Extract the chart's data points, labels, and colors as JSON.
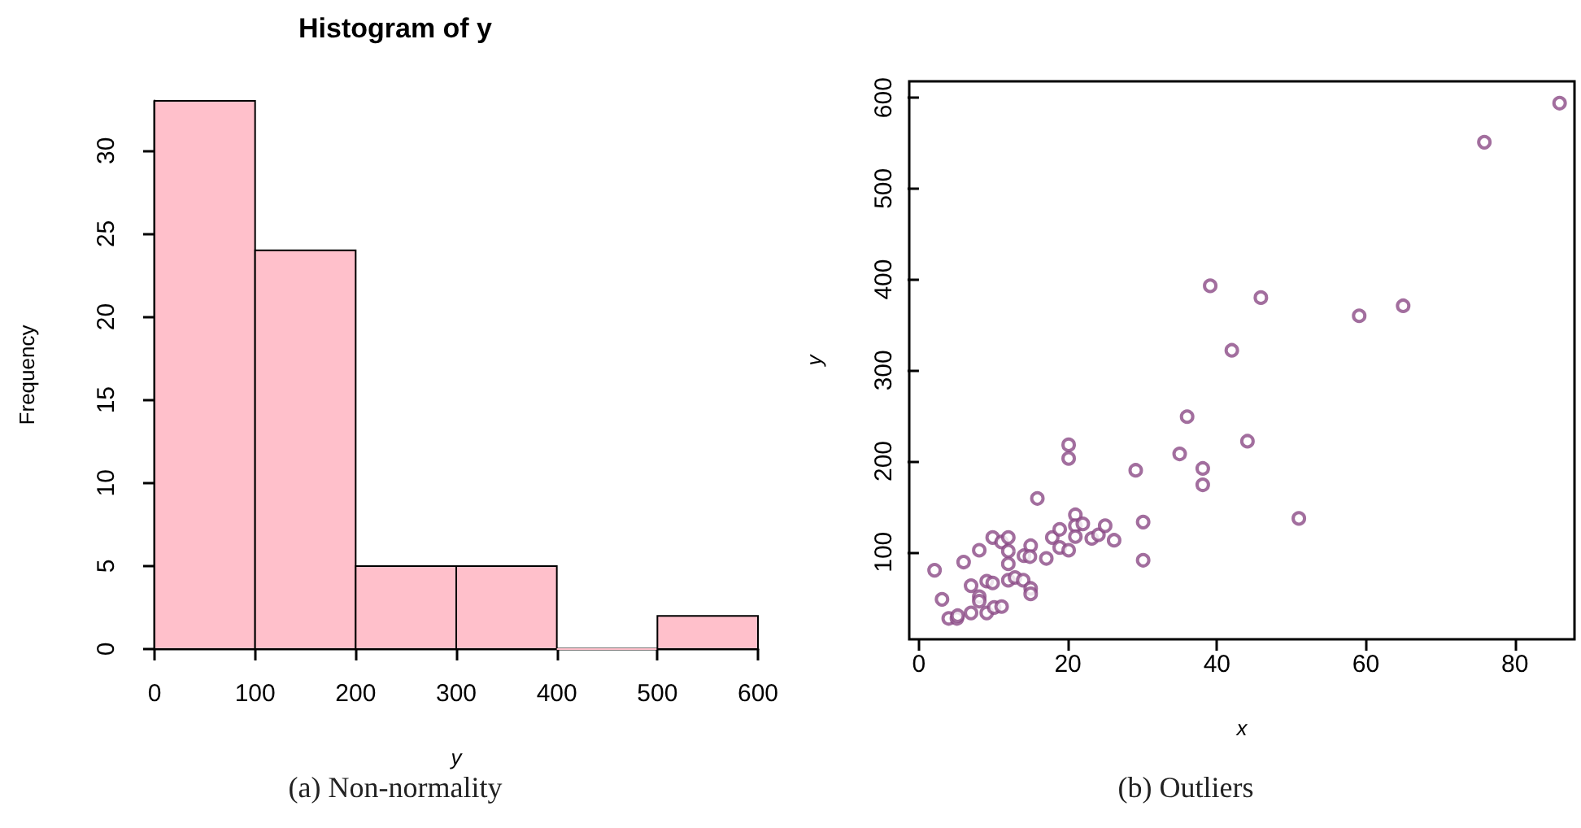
{
  "chart_data": [
    {
      "type": "histogram",
      "title": "Histogram of y",
      "xlabel": "y",
      "ylabel": "Frequency",
      "bins": [
        0,
        100,
        200,
        300,
        400,
        500,
        600
      ],
      "values": [
        33,
        24,
        5,
        5,
        0,
        2
      ],
      "color": "#ffc0cb",
      "xlim": [
        0,
        600
      ],
      "xticks": [
        0,
        100,
        200,
        300,
        400,
        500,
        600
      ],
      "ylim": [
        0,
        33
      ],
      "yticks": [
        0,
        5,
        10,
        15,
        20,
        25,
        30
      ],
      "grid": false,
      "annotations": [
        "(a) Non-normality"
      ]
    },
    {
      "type": "scatter",
      "xlabel": "x",
      "ylabel": "y",
      "color": "#8b4a86",
      "marker": "circle",
      "grid": false,
      "xlim": [
        -1.3,
        88
      ],
      "xticks": [
        0,
        20,
        40,
        60,
        80
      ],
      "ylim": [
        4,
        618
      ],
      "yticks": [
        100,
        200,
        300,
        400,
        500,
        600
      ],
      "annotations": [
        "(b) Outliers"
      ],
      "x": [
        2.1,
        3.1,
        4,
        5.1,
        5.2,
        6,
        7,
        7,
        8.1,
        8.1,
        8.1,
        9.1,
        9.1,
        9.9,
        9.9,
        10.1,
        11.1,
        11.1,
        12,
        12,
        12,
        12,
        12.9,
        14,
        14.1,
        15,
        14.9,
        15,
        15,
        17.1,
        15.9,
        17.9,
        18.9,
        18.9,
        20.1,
        20.1,
        20.1,
        21,
        21,
        21,
        22,
        23.2,
        24.1,
        25,
        26.2,
        29.1,
        30.1,
        30.1,
        35,
        36,
        38.1,
        38.1,
        39.1,
        42,
        44.1,
        45.9,
        51,
        59.1,
        65,
        75.9,
        86
      ],
      "values": [
        80,
        48,
        27,
        27,
        30,
        89,
        33,
        63,
        102,
        51,
        46,
        33,
        68,
        66,
        116,
        39,
        40,
        111,
        116,
        101,
        87,
        69,
        72,
        69,
        96,
        107,
        95,
        60,
        54,
        93,
        159,
        116,
        125,
        105,
        218,
        203,
        102,
        141,
        129,
        117,
        131,
        115,
        119,
        129,
        113,
        190,
        133,
        91,
        208,
        249,
        192,
        174,
        393,
        322,
        222,
        380,
        137,
        360,
        371,
        551,
        594
      ]
    }
  ]
}
